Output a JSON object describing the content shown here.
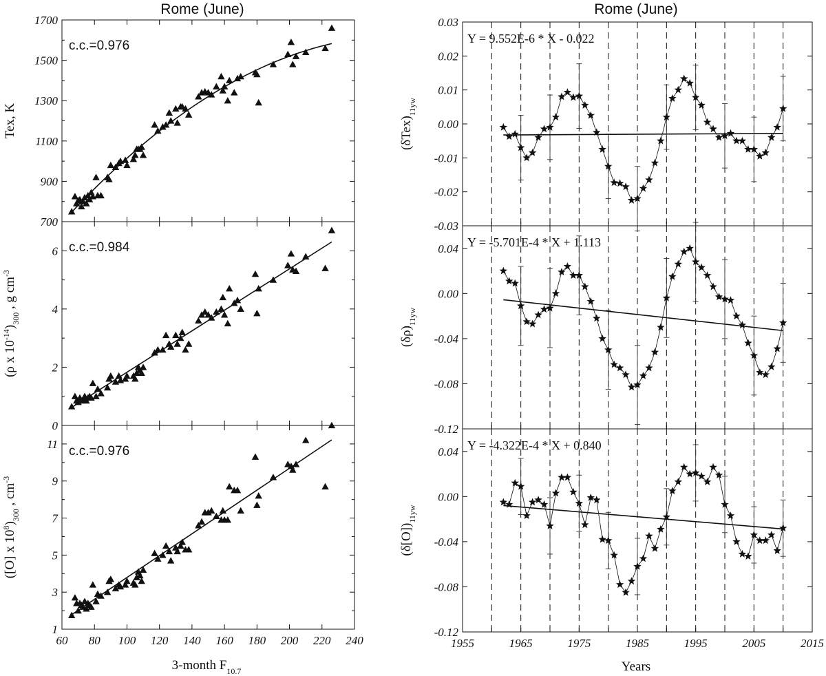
{
  "chart_data": [
    {
      "type": "scatter",
      "title": "Rome (June)",
      "annotation": "c.c.=0.976",
      "ylabel": "Tex, K",
      "xlim": [
        60,
        240
      ],
      "ylim": [
        700,
        1700
      ],
      "yticks": [
        "700",
        "900",
        "1100",
        "1300",
        "1500",
        "1700"
      ],
      "fit": "quadratic",
      "x": [
        66,
        68,
        69,
        70,
        71,
        72,
        73,
        74,
        75,
        76,
        77,
        78,
        79,
        81,
        82,
        84,
        88,
        89,
        90,
        93,
        95,
        96,
        99,
        100,
        104,
        105,
        106,
        107,
        108,
        109,
        110,
        117,
        119,
        122,
        124,
        126,
        127,
        130,
        131,
        133,
        134,
        136,
        138,
        144,
        146,
        148,
        150,
        152,
        155,
        158,
        159,
        160,
        162,
        163,
        166,
        168,
        170,
        179,
        180,
        181,
        190,
        199,
        201,
        202,
        204,
        210,
        222,
        226
      ],
      "y": [
        750,
        825,
        790,
        805,
        810,
        775,
        800,
        820,
        790,
        830,
        810,
        845,
        825,
        920,
        830,
        830,
        920,
        910,
        980,
        970,
        990,
        1000,
        1005,
        980,
        1010,
        1030,
        1060,
        1060,
        1060,
        1070,
        1030,
        1180,
        1150,
        1170,
        1180,
        1240,
        1200,
        1260,
        1190,
        1270,
        1270,
        1260,
        1230,
        1320,
        1340,
        1345,
        1340,
        1330,
        1370,
        1420,
        1350,
        1370,
        1300,
        1400,
        1340,
        1410,
        1420,
        1440,
        1430,
        1290,
        1480,
        1530,
        1590,
        1480,
        1520,
        1540,
        1560,
        1660
      ]
    },
    {
      "type": "scatter",
      "annotation": "c.c.=0.984",
      "ylabel": "(ρ x 10-14)300 , g cm-3",
      "xlim": [
        60,
        240
      ],
      "ylim": [
        0,
        7
      ],
      "yticks": [
        "0",
        "2",
        "4",
        "6"
      ],
      "fit": "linear",
      "x": [
        66,
        68,
        69,
        70,
        71,
        72,
        73,
        74,
        75,
        76,
        77,
        78,
        79,
        81,
        82,
        84,
        88,
        89,
        90,
        93,
        95,
        96,
        99,
        100,
        104,
        105,
        106,
        107,
        108,
        109,
        110,
        117,
        119,
        122,
        124,
        126,
        127,
        130,
        131,
        133,
        134,
        136,
        138,
        144,
        146,
        148,
        150,
        152,
        155,
        158,
        159,
        160,
        162,
        163,
        166,
        168,
        170,
        179,
        180,
        181,
        190,
        199,
        201,
        202,
        204,
        210,
        222,
        226
      ],
      "y": [
        0.65,
        1.0,
        0.85,
        0.8,
        0.95,
        0.85,
        0.9,
        1.0,
        0.85,
        0.95,
        1.0,
        0.95,
        1.45,
        1.0,
        1.25,
        1.1,
        1.3,
        1.6,
        1.7,
        1.5,
        1.7,
        1.55,
        1.6,
        1.7,
        1.7,
        1.6,
        1.8,
        2.0,
        1.9,
        1.8,
        2.0,
        2.5,
        2.6,
        2.6,
        3.1,
        2.8,
        2.7,
        3.1,
        2.8,
        3.0,
        3.2,
        2.6,
        2.8,
        3.6,
        3.8,
        3.9,
        3.8,
        3.7,
        3.9,
        4.0,
        4.4,
        3.8,
        3.5,
        4.7,
        4.2,
        4.3,
        4.0,
        5.2,
        3.85,
        4.7,
        5.0,
        5.5,
        5.9,
        5.35,
        5.3,
        5.8,
        5.4,
        6.7
      ]
    },
    {
      "type": "scatter",
      "annotation": "c.c.=0.976",
      "ylabel": "([O] x 108)300 , cm-3",
      "xlabel": "3-month F10.7",
      "xlim": [
        60,
        240
      ],
      "ylim": [
        1,
        12
      ],
      "xticks": [
        "60",
        "80",
        "100",
        "120",
        "140",
        "160",
        "180",
        "200",
        "220",
        "240"
      ],
      "yticks": [
        "1",
        "3",
        "5",
        "7",
        "9",
        "11"
      ],
      "fit": "linear",
      "x": [
        66,
        68,
        69,
        70,
        71,
        72,
        73,
        74,
        75,
        76,
        77,
        78,
        79,
        81,
        82,
        84,
        88,
        89,
        90,
        93,
        95,
        96,
        99,
        100,
        104,
        105,
        106,
        107,
        108,
        109,
        110,
        117,
        119,
        122,
        124,
        126,
        127,
        130,
        131,
        133,
        134,
        136,
        138,
        144,
        146,
        148,
        150,
        152,
        155,
        158,
        159,
        160,
        162,
        163,
        166,
        168,
        170,
        179,
        180,
        181,
        190,
        199,
        201,
        202,
        204,
        210,
        222,
        226
      ],
      "y": [
        1.75,
        2.7,
        2.4,
        2.0,
        2.4,
        2.3,
        2.2,
        2.5,
        2.1,
        2.4,
        2.3,
        2.2,
        3.4,
        2.5,
        2.9,
        2.8,
        3.0,
        3.6,
        3.7,
        3.2,
        3.4,
        3.3,
        3.4,
        3.6,
        3.5,
        3.4,
        3.8,
        4.1,
        3.9,
        3.6,
        4.2,
        5.1,
        4.8,
        5.0,
        5.5,
        5.2,
        4.7,
        5.4,
        5.2,
        5.5,
        5.7,
        5.3,
        5.3,
        6.6,
        6.8,
        7.3,
        7.3,
        7.4,
        7.1,
        6.9,
        7.4,
        6.9,
        6.9,
        8.7,
        8.5,
        8.5,
        7.4,
        10.3,
        7.7,
        8.2,
        9.2,
        9.9,
        9.8,
        9.6,
        9.9,
        11.2,
        8.7,
        12.0
      ]
    },
    {
      "type": "line",
      "title": "Rome (June)",
      "equation": "Y = 9.552E-6 * X - 0.022",
      "ylabel": "(δTex)11yw",
      "xlim": [
        1955,
        2015
      ],
      "ylim": [
        -0.03,
        0.03
      ],
      "yticks": [
        "0.03",
        "0.02",
        "0.01",
        "0.00",
        "-0.01",
        "-0.02",
        "-0.03"
      ],
      "trend": {
        "slope": 9.552e-06,
        "intercept": -0.022
      },
      "error_bars": {
        "years": [
          1965,
          1970,
          1975,
          1980,
          1985,
          1990,
          1995,
          2000,
          2005,
          2010
        ],
        "half_width": 0.0095
      },
      "x": [
        1962,
        1963,
        1964,
        1965,
        1966,
        1967,
        1968,
        1969,
        1970,
        1971,
        1972,
        1973,
        1974,
        1975,
        1976,
        1977,
        1978,
        1979,
        1980,
        1981,
        1982,
        1983,
        1984,
        1985,
        1986,
        1987,
        1988,
        1989,
        1990,
        1991,
        1992,
        1993,
        1994,
        1995,
        1996,
        1997,
        1998,
        1999,
        2000,
        2001,
        2002,
        2003,
        2004,
        2005,
        2006,
        2007,
        2008,
        2009,
        2010
      ],
      "y": [
        -0.001,
        -0.0037,
        -0.003,
        -0.007,
        -0.01,
        -0.0085,
        -0.004,
        -0.0015,
        -0.001,
        0.002,
        0.008,
        0.0093,
        0.0078,
        0.0082,
        0.0055,
        0.0025,
        -0.0025,
        -0.0075,
        -0.0125,
        -0.0173,
        -0.0175,
        -0.0185,
        -0.0225,
        -0.022,
        -0.019,
        -0.0165,
        -0.0115,
        -0.005,
        0.002,
        0.0075,
        0.01,
        0.0133,
        0.012,
        0.0078,
        0.0055,
        0.0005,
        -0.0015,
        -0.004,
        -0.0035,
        -0.0028,
        -0.005,
        -0.005,
        -0.0075,
        -0.0075,
        -0.0095,
        -0.0085,
        -0.004,
        -0.001,
        0.0045
      ]
    },
    {
      "type": "line",
      "equation": "Y = -5.701E-4 * X + 1.113",
      "ylabel": "(δρ)11yw",
      "xlim": [
        1955,
        2015
      ],
      "ylim": [
        -0.12,
        0.06
      ],
      "yticks": [
        "0.04",
        "0.00",
        "-0.04",
        "-0.08",
        "-0.12"
      ],
      "trend": {
        "slope": -0.0005701,
        "intercept": 1.113
      },
      "error_bars": {
        "years": [
          1965,
          1970,
          1975,
          1980,
          1985,
          1990,
          1995,
          2000,
          2005,
          2010
        ],
        "half_width": 0.035
      },
      "x": [
        1962,
        1963,
        1964,
        1965,
        1966,
        1967,
        1968,
        1969,
        1970,
        1971,
        1972,
        1973,
        1974,
        1975,
        1976,
        1977,
        1978,
        1979,
        1980,
        1981,
        1982,
        1983,
        1984,
        1985,
        1986,
        1987,
        1988,
        1989,
        1990,
        1991,
        1992,
        1993,
        1994,
        1995,
        1996,
        1997,
        1998,
        1999,
        2000,
        2001,
        2002,
        2003,
        2004,
        2005,
        2006,
        2007,
        2008,
        2009,
        2010
      ],
      "y": [
        0.02,
        0.011,
        0.009,
        -0.011,
        -0.025,
        -0.027,
        -0.019,
        -0.014,
        -0.013,
        0.0,
        0.019,
        0.024,
        0.016,
        0.016,
        0.006,
        -0.007,
        -0.022,
        -0.04,
        -0.05,
        -0.063,
        -0.066,
        -0.072,
        -0.083,
        -0.081,
        -0.073,
        -0.066,
        -0.052,
        -0.03,
        -0.004,
        0.015,
        0.026,
        0.037,
        0.04,
        0.028,
        0.023,
        0.016,
        0.006,
        -0.003,
        -0.005,
        -0.006,
        -0.02,
        -0.028,
        -0.044,
        -0.055,
        -0.07,
        -0.072,
        -0.065,
        -0.049,
        -0.026
      ]
    },
    {
      "type": "line",
      "equation": "Y = -4.322E-4 * X + 0.840",
      "ylabel": "(δ[O])11yw",
      "xlabel": "Years",
      "xlim": [
        1955,
        2015
      ],
      "ylim": [
        -0.12,
        0.06
      ],
      "xticks": [
        "1955",
        "1965",
        "1975",
        "1985",
        "1995",
        "2005",
        "2015"
      ],
      "yticks": [
        "0.04",
        "0.00",
        "-0.04",
        "-0.08",
        "-0.12"
      ],
      "trend": {
        "slope": -0.0004322,
        "intercept": 0.84
      },
      "error_bars": {
        "years": [
          1965,
          1970,
          1975,
          1980,
          1985,
          1990,
          1995,
          2000,
          2005,
          2010
        ],
        "half_width": 0.025
      },
      "x": [
        1962,
        1963,
        1964,
        1965,
        1966,
        1967,
        1968,
        1969,
        1970,
        1971,
        1972,
        1973,
        1974,
        1975,
        1976,
        1977,
        1978,
        1979,
        1980,
        1981,
        1982,
        1983,
        1984,
        1985,
        1986,
        1987,
        1988,
        1989,
        1990,
        1991,
        1992,
        1993,
        1994,
        1995,
        1996,
        1997,
        1998,
        1999,
        2000,
        2001,
        2002,
        2003,
        2004,
        2005,
        2006,
        2007,
        2008,
        2009,
        2010
      ],
      "y": [
        -0.005,
        -0.007,
        0.012,
        0.009,
        -0.017,
        -0.005,
        -0.003,
        -0.007,
        -0.026,
        0.003,
        0.017,
        0.017,
        0.004,
        -0.006,
        -0.025,
        -0.001,
        -0.003,
        -0.038,
        -0.039,
        -0.052,
        -0.078,
        -0.085,
        -0.075,
        -0.062,
        -0.055,
        -0.035,
        -0.046,
        -0.029,
        -0.018,
        0.005,
        0.013,
        0.026,
        0.02,
        0.021,
        0.018,
        0.013,
        0.026,
        0.019,
        -0.007,
        -0.017,
        -0.04,
        -0.051,
        -0.053,
        -0.034,
        -0.039,
        -0.039,
        -0.034,
        -0.048,
        -0.028
      ]
    }
  ]
}
